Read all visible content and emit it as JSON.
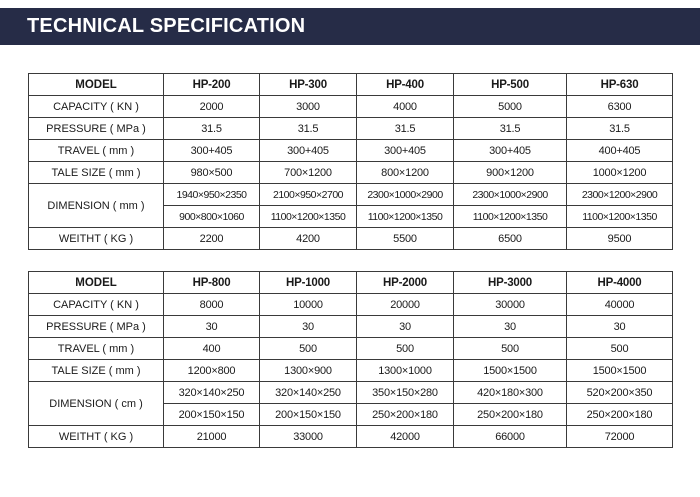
{
  "header": {
    "title": "TECHNICAL SPECIFICATION"
  },
  "table1": {
    "model_label": "MODEL",
    "models": [
      "HP-200",
      "HP-300",
      "HP-400",
      "HP-500",
      "HP-630"
    ],
    "capacity_label": "CAPACITY ( KN )",
    "capacity": [
      "2000",
      "3000",
      "4000",
      "5000",
      "6300"
    ],
    "pressure_label": "PRESSURE ( MPa )",
    "pressure": [
      "31.5",
      "31.5",
      "31.5",
      "31.5",
      "31.5"
    ],
    "travel_label": "TRAVEL ( mm )",
    "travel": [
      "300+405",
      "300+405",
      "300+405",
      "300+405",
      "400+405"
    ],
    "tale_label": "TALE SIZE ( mm )",
    "tale": [
      "980×500",
      "700×1200",
      "800×1200",
      "900×1200",
      "1000×1200"
    ],
    "dimension_label": "DIMENSION ( mm )",
    "dimension_a": [
      "1940×950×2350",
      "2100×950×2700",
      "2300×1000×2900",
      "2300×1000×2900",
      "2300×1200×2900"
    ],
    "dimension_b": [
      "900×800×1060",
      "1100×1200×1350",
      "1100×1200×1350",
      "1100×1200×1350",
      "1100×1200×1350"
    ],
    "weight_label": "WEITHT ( KG )",
    "weight": [
      "2200",
      "4200",
      "5500",
      "6500",
      "9500"
    ]
  },
  "table2": {
    "model_label": "MODEL",
    "models": [
      "HP-800",
      "HP-1000",
      "HP-2000",
      "HP-3000",
      "HP-4000"
    ],
    "capacity_label": "CAPACITY ( KN )",
    "capacity": [
      "8000",
      "10000",
      "20000",
      "30000",
      "40000"
    ],
    "pressure_label": "PRESSURE ( MPa )",
    "pressure": [
      "30",
      "30",
      "30",
      "30",
      "30"
    ],
    "travel_label": "TRAVEL ( mm )",
    "travel": [
      "400",
      "500",
      "500",
      "500",
      "500"
    ],
    "tale_label": "TALE SIZE ( mm )",
    "tale": [
      "1200×800",
      "1300×900",
      "1300×1000",
      "1500×1500",
      "1500×1500"
    ],
    "dimension_label": "DIMENSION ( cm )",
    "dimension_a": [
      "320×140×250",
      "320×140×250",
      "350×150×280",
      "420×180×300",
      "520×200×350"
    ],
    "dimension_b": [
      "200×150×150",
      "200×150×150",
      "250×200×180",
      "250×200×180",
      "250×200×180"
    ],
    "weight_label": "WEITHT ( KG )",
    "weight": [
      "21000",
      "33000",
      "42000",
      "66000",
      "72000"
    ]
  }
}
